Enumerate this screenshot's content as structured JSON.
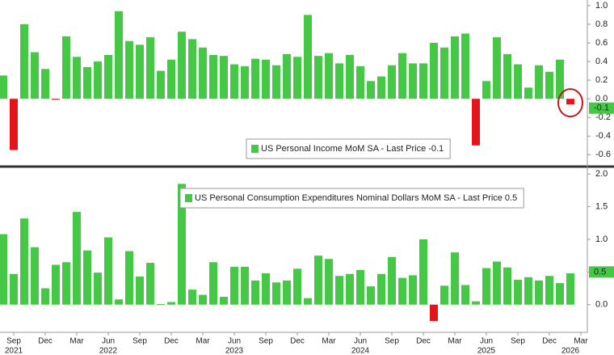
{
  "chart_data": [
    {
      "type": "bar",
      "series": [
        {
          "name": "US Personal Income MoM SA - Last Price -0.1",
          "color": "#45c845",
          "negative_color": "#e3141b",
          "values": [
            0.25,
            -0.55,
            0.8,
            0.5,
            0.32,
            -0.01,
            0.67,
            0.45,
            0.34,
            0.4,
            0.47,
            0.94,
            0.62,
            0.58,
            0.66,
            0.3,
            0.42,
            0.72,
            0.64,
            0.55,
            0.47,
            0.46,
            0.37,
            0.35,
            0.43,
            0.42,
            0.36,
            0.48,
            0.45,
            0.9,
            0.46,
            0.49,
            0.38,
            0.47,
            0.35,
            0.19,
            0.24,
            0.36,
            0.49,
            0.38,
            0.38,
            0.6,
            0.55,
            0.67,
            0.7,
            -0.5,
            0.19,
            0.66,
            0.48,
            0.37,
            0.12,
            0.36,
            0.29,
            0.42,
            -0.06,
            null
          ]
        }
      ],
      "last_price": -0.1,
      "ylim": [
        -0.71,
        1.06
      ],
      "yticks": [
        {
          "value": 1,
          "label": "1.0"
        },
        0.8,
        0.6,
        0.4,
        0.2,
        {
          "value": 0,
          "label": "0.0"
        },
        -0.2,
        -0.4,
        -0.6
      ]
    },
    {
      "type": "bar",
      "categories": [
        null,
        "Sep",
        null,
        null,
        "Dec",
        null,
        null,
        "Mar",
        null,
        null,
        "Jun",
        null,
        null,
        "Sep",
        null,
        null,
        "Dec",
        null,
        null,
        "Mar",
        null,
        null,
        "Jun",
        null,
        null,
        "Sep",
        null,
        null,
        "Dec",
        null,
        null,
        "Mar",
        null,
        null,
        "Jun",
        null,
        null,
        "Sep",
        null,
        null,
        "Dec",
        null,
        null,
        "Mar",
        null,
        null,
        "Jun",
        null,
        null,
        "Sep",
        null,
        null,
        "Dec",
        null,
        null,
        "Mar"
      ],
      "category_years": [
        null,
        "2021",
        null,
        null,
        null,
        null,
        null,
        null,
        null,
        null,
        "2022",
        null,
        null,
        null,
        null,
        null,
        null,
        null,
        null,
        null,
        null,
        null,
        "2023",
        null,
        null,
        null,
        null,
        null,
        null,
        null,
        null,
        null,
        null,
        null,
        "2024",
        null,
        null,
        null,
        null,
        null,
        null,
        null,
        null,
        null,
        null,
        null,
        "2025",
        null,
        null,
        null,
        null,
        null,
        null,
        null,
        "2026",
        null
      ],
      "series": [
        {
          "name": "US Personal Consumption Expenditures Nominal Dollars MoM SA - Last Price 0.5",
          "color": "#45c845",
          "negative_color": "#e3141b",
          "values": [
            1.08,
            0.47,
            1.32,
            0.88,
            0.25,
            0.61,
            0.65,
            1.42,
            0.83,
            0.49,
            1.03,
            0.08,
            0.82,
            0.43,
            0.64,
            0.01,
            0.04,
            1.85,
            0.23,
            0.15,
            0.65,
            0.12,
            0.58,
            0.58,
            0.37,
            0.48,
            0.34,
            0.37,
            0.55,
            0.1,
            0.75,
            0.7,
            0.44,
            0.47,
            0.53,
            0.28,
            0.47,
            0.73,
            0.41,
            0.45,
            1.0,
            -0.25,
            0.29,
            0.8,
            0.3,
            0.05,
            0.56,
            0.66,
            0.57,
            0.38,
            0.42,
            0.37,
            0.44,
            0.33,
            0.48,
            null
          ]
        }
      ],
      "last_price": 0.5,
      "ylim": [
        -0.4,
        2.09
      ],
      "yticks": [
        {
          "value": 2,
          "label": "2.0"
        },
        1.5,
        {
          "value": 1,
          "label": "1.0"
        },
        0.5,
        {
          "value": 0,
          "label": "0.0"
        }
      ]
    }
  ]
}
